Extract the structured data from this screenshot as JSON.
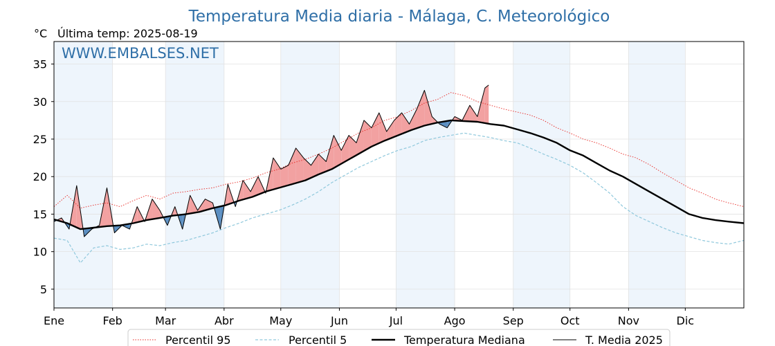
{
  "chart_data": {
    "type": "line",
    "title": "Temperatura Media diaria - Málaga, C. Meteorológico",
    "unit_label": "°C",
    "last_temp_label": "Última temp: 2025-08-19",
    "watermark": "WWW.EMBALSES.NET",
    "ylim": [
      2.5,
      38
    ],
    "yticks": [
      5,
      10,
      15,
      20,
      25,
      30,
      35
    ],
    "x_day_range": [
      1,
      366
    ],
    "months": [
      {
        "label": "Ene",
        "day": 1
      },
      {
        "label": "Feb",
        "day": 32
      },
      {
        "label": "Mar",
        "day": 60
      },
      {
        "label": "Abr",
        "day": 91
      },
      {
        "label": "May",
        "day": 121
      },
      {
        "label": "Jun",
        "day": 152
      },
      {
        "label": "Jul",
        "day": 182
      },
      {
        "label": "Ago",
        "day": 213
      },
      {
        "label": "Sep",
        "day": 244
      },
      {
        "label": "Oct",
        "day": 274
      },
      {
        "label": "Nov",
        "day": 305
      },
      {
        "label": "Dic",
        "day": 335
      }
    ],
    "grid": true,
    "legend_position": "bottom-center",
    "colors": {
      "p95": "#e8241f",
      "p5": "#8fc8dc",
      "median": "#000000",
      "current": "#000000",
      "above_fill": "#f2a1a1",
      "below_fill": "#5b8fc2",
      "band_shade": "#eef5fc",
      "title": "#2f6fa7"
    },
    "series": [
      {
        "name": "Percentil 95",
        "style": "dotted-red",
        "x": [
          1,
          8,
          15,
          22,
          29,
          36,
          43,
          50,
          57,
          64,
          71,
          78,
          85,
          92,
          99,
          106,
          113,
          120,
          127,
          134,
          141,
          148,
          155,
          162,
          169,
          176,
          183,
          190,
          197,
          204,
          211,
          218,
          225,
          232,
          239,
          246,
          253,
          260,
          267,
          274,
          281,
          288,
          295,
          302,
          309,
          316,
          323,
          330,
          337,
          344,
          351,
          358,
          366
        ],
        "values": [
          16.0,
          17.5,
          15.8,
          16.2,
          16.5,
          16.0,
          16.8,
          17.5,
          17.0,
          17.8,
          18.0,
          18.3,
          18.5,
          19.0,
          19.3,
          19.8,
          20.5,
          21.0,
          21.8,
          22.3,
          23.0,
          23.8,
          24.8,
          25.8,
          26.5,
          27.5,
          28.0,
          28.8,
          29.8,
          30.3,
          31.2,
          30.8,
          30.0,
          29.5,
          29.0,
          28.6,
          28.2,
          27.5,
          26.5,
          25.8,
          25.0,
          24.5,
          23.8,
          23.0,
          22.5,
          21.6,
          20.5,
          19.5,
          18.5,
          17.8,
          17.0,
          16.5,
          16.0
        ]
      },
      {
        "name": "Percentil 5",
        "style": "dashed-lightblue",
        "x": [
          1,
          8,
          15,
          22,
          29,
          36,
          43,
          50,
          57,
          64,
          71,
          78,
          85,
          92,
          99,
          106,
          113,
          120,
          127,
          134,
          141,
          148,
          155,
          162,
          169,
          176,
          183,
          190,
          197,
          204,
          211,
          218,
          225,
          232,
          239,
          246,
          253,
          260,
          267,
          274,
          281,
          288,
          295,
          302,
          309,
          316,
          323,
          330,
          337,
          344,
          351,
          358,
          366
        ],
        "values": [
          11.8,
          11.5,
          8.5,
          10.5,
          10.8,
          10.3,
          10.5,
          11.0,
          10.8,
          11.2,
          11.5,
          12.0,
          12.5,
          13.2,
          13.8,
          14.5,
          15.0,
          15.5,
          16.2,
          17.0,
          18.0,
          19.2,
          20.2,
          21.2,
          22.0,
          22.8,
          23.5,
          24.0,
          24.8,
          25.2,
          25.5,
          25.8,
          25.5,
          25.2,
          24.8,
          24.5,
          23.8,
          23.0,
          22.3,
          21.5,
          20.5,
          19.2,
          17.8,
          16.0,
          14.8,
          14.0,
          13.2,
          12.5,
          12.0,
          11.5,
          11.2,
          11.0,
          11.5
        ]
      },
      {
        "name": "Temperatura Mediana",
        "style": "thick-black",
        "x": [
          1,
          8,
          15,
          22,
          29,
          36,
          43,
          50,
          57,
          64,
          71,
          78,
          85,
          92,
          99,
          106,
          113,
          120,
          127,
          134,
          141,
          148,
          155,
          162,
          169,
          176,
          183,
          190,
          197,
          204,
          211,
          218,
          225,
          232,
          239,
          246,
          253,
          260,
          267,
          274,
          281,
          288,
          295,
          302,
          309,
          316,
          323,
          330,
          337,
          344,
          351,
          358,
          366
        ],
        "values": [
          14.3,
          13.8,
          13.0,
          13.2,
          13.4,
          13.5,
          13.8,
          14.2,
          14.5,
          14.8,
          15.0,
          15.3,
          15.8,
          16.2,
          16.8,
          17.3,
          18.0,
          18.5,
          19.0,
          19.5,
          20.3,
          21.0,
          22.0,
          23.0,
          24.0,
          24.8,
          25.5,
          26.2,
          26.8,
          27.2,
          27.5,
          27.4,
          27.3,
          27.0,
          26.8,
          26.3,
          25.8,
          25.2,
          24.5,
          23.5,
          22.8,
          21.8,
          20.8,
          20.0,
          19.0,
          18.0,
          17.0,
          16.0,
          15.0,
          14.5,
          14.2,
          14.0,
          13.8
        ]
      },
      {
        "name": "T. Media 2025",
        "style": "thin-black",
        "x": [
          1,
          5,
          9,
          13,
          17,
          21,
          25,
          29,
          33,
          37,
          41,
          45,
          49,
          53,
          57,
          61,
          65,
          69,
          73,
          77,
          81,
          85,
          89,
          93,
          97,
          101,
          105,
          109,
          113,
          117,
          121,
          125,
          129,
          133,
          137,
          141,
          145,
          149,
          153,
          157,
          161,
          165,
          169,
          173,
          177,
          181,
          185,
          189,
          193,
          197,
          201,
          205,
          209,
          213,
          217,
          221,
          225,
          229,
          231
        ],
        "values": [
          14.0,
          14.5,
          13.0,
          18.8,
          12.0,
          13.0,
          13.5,
          18.5,
          12.5,
          13.5,
          13.0,
          16.0,
          14.0,
          17.0,
          15.5,
          13.5,
          16.0,
          13.0,
          17.5,
          15.5,
          17.0,
          16.5,
          13.0,
          19.0,
          16.0,
          19.5,
          18.0,
          20.0,
          17.8,
          22.5,
          21.0,
          21.5,
          23.8,
          22.5,
          21.5,
          23.0,
          22.0,
          25.5,
          23.5,
          25.5,
          24.5,
          27.5,
          26.5,
          28.5,
          26.0,
          27.5,
          28.5,
          27.0,
          29.0,
          31.5,
          28.0,
          27.0,
          26.5,
          28.0,
          27.5,
          29.5,
          28.0,
          31.8,
          32.2
        ]
      }
    ]
  },
  "legend": {
    "p95": "Percentil 95",
    "p5": "Percentil 5",
    "median": "Temperatura Mediana",
    "current": "T. Media 2025"
  }
}
